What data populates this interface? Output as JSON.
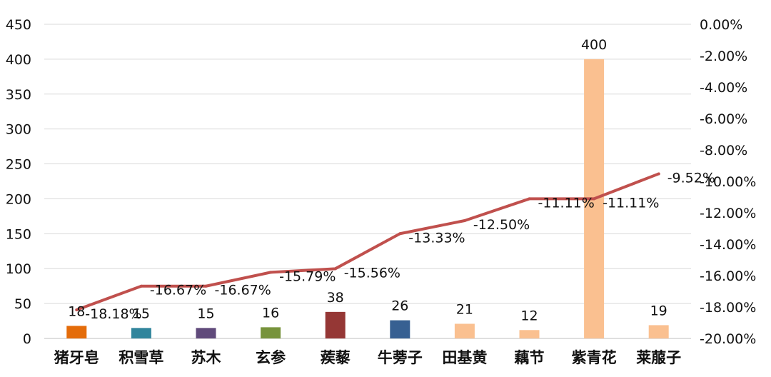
{
  "chart_data": {
    "type": "bar",
    "categories": [
      "猪牙皂",
      "积雪草",
      "苏木",
      "玄参",
      "蒺藜",
      "牛蒡子",
      "田基黄",
      "藕节",
      "紫青花",
      "莱菔子"
    ],
    "series": [
      {
        "type": "bar",
        "axis": "left",
        "values": [
          18,
          15,
          15,
          16,
          38,
          26,
          21,
          12,
          400,
          19
        ],
        "colors": [
          "#E46C0A",
          "#31859C",
          "#604A7B",
          "#77933C",
          "#953735",
          "#376092",
          "#FAC090",
          "#FAC090",
          "#FAC090",
          "#FAC090"
        ],
        "labels": [
          "18",
          "15",
          "15",
          "16",
          "38",
          "26",
          "21",
          "12",
          "400",
          "19"
        ]
      },
      {
        "type": "line",
        "axis": "right",
        "values": [
          -18.18,
          -16.67,
          -16.67,
          -15.79,
          -15.56,
          -13.33,
          -12.5,
          -11.11,
          -11.11,
          -9.52
        ],
        "color": "#C0504D",
        "labels": [
          "-18.18%",
          "-16.67%",
          "-16.67%",
          "-15.79%",
          "-15.56%",
          "-13.33%",
          "-12.50%",
          "-11.11%",
          "-11.11%",
          "-9.52%"
        ]
      }
    ],
    "left_axis": {
      "ylim": [
        0,
        450
      ],
      "ticks": [
        0,
        50,
        100,
        150,
        200,
        250,
        300,
        350,
        400,
        450
      ],
      "tick_labels": [
        "0",
        "50",
        "100",
        "150",
        "200",
        "250",
        "300",
        "350",
        "400",
        "450"
      ]
    },
    "right_axis": {
      "ylim": [
        -20,
        0
      ],
      "ticks": [
        -20,
        -18,
        -16,
        -14,
        -12,
        -10,
        -8,
        -6,
        -4,
        -2,
        0
      ],
      "tick_labels": [
        "-20.00%",
        "-18.00%",
        "-16.00%",
        "-14.00%",
        "-12.00%",
        "-10.00%",
        "-8.00%",
        "-6.00%",
        "-4.00%",
        "-2.00%",
        "0.00%"
      ]
    },
    "grid": true,
    "legend": "none"
  }
}
